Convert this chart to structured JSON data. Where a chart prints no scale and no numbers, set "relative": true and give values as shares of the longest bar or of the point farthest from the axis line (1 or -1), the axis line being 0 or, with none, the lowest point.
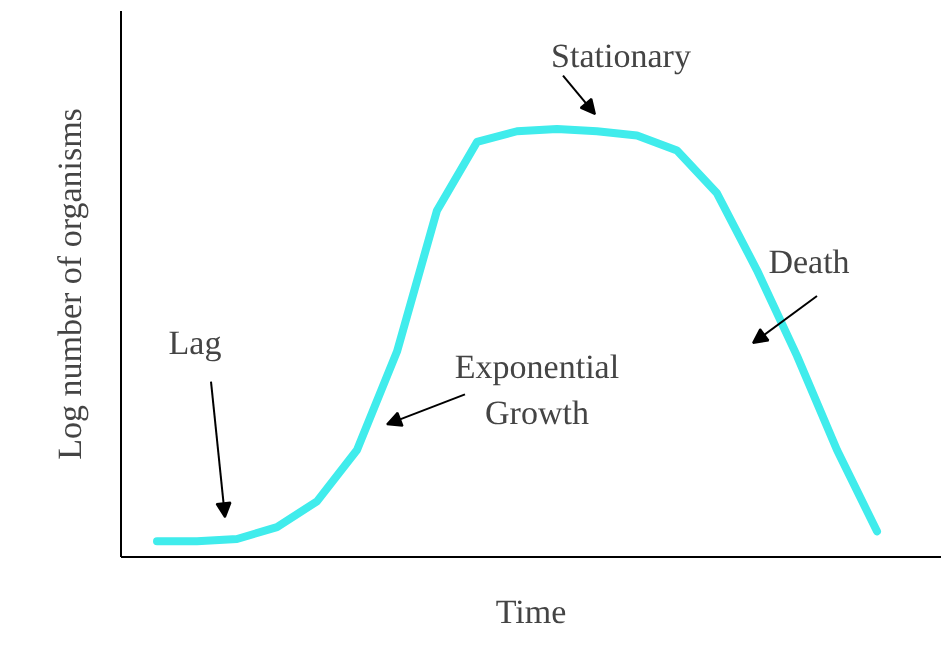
{
  "chart_data": {
    "type": "line",
    "relative": true,
    "xlabel": "Time",
    "ylabel": "Log number of organisms",
    "color": "#40ecec",
    "categories": [
      null,
      null,
      null,
      null,
      null,
      null,
      null,
      null,
      null,
      null,
      null,
      null,
      null,
      null,
      null,
      null,
      null,
      null,
      null
    ],
    "values": [
      0.037,
      0.037,
      0.042,
      0.07,
      0.13,
      0.25,
      0.48,
      0.81,
      0.97,
      0.995,
      1.0,
      0.995,
      0.985,
      0.95,
      0.85,
      0.67,
      0.47,
      0.25,
      0.06
    ],
    "annotations": [
      "Lag",
      "Exponential\nGrowth",
      "Stationary",
      "Death"
    ]
  }
}
